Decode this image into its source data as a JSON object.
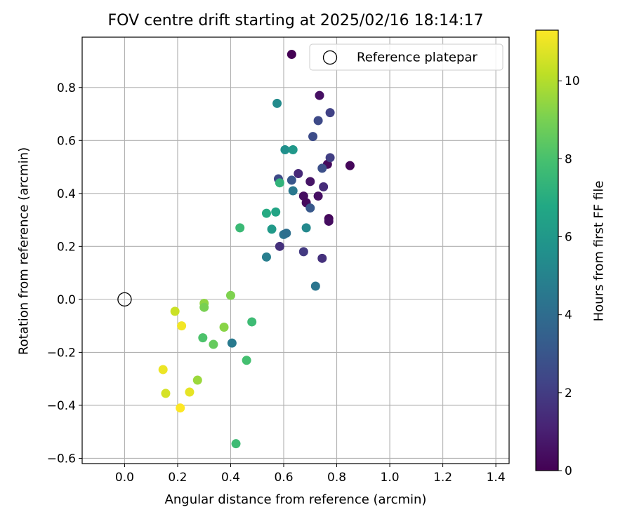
{
  "chart_data": {
    "type": "scatter",
    "title": "FOV centre drift starting at 2025/02/16 18:14:17",
    "xlabel": "Angular distance from reference (arcmin)",
    "ylabel": "Rotation from reference (arcmin)",
    "xlim": [
      -0.16,
      1.45
    ],
    "ylim": [
      -0.62,
      0.99
    ],
    "xticks": [
      0.0,
      0.2,
      0.4,
      0.6,
      0.8,
      1.0,
      1.2,
      1.4
    ],
    "xtick_labels": [
      "0.0",
      "0.2",
      "0.4",
      "0.6",
      "0.8",
      "1.0",
      "1.2",
      "1.4"
    ],
    "yticks": [
      -0.6,
      -0.4,
      -0.2,
      0.0,
      0.2,
      0.4,
      0.6,
      0.8
    ],
    "ytick_labels": [
      "−0.6",
      "−0.4",
      "−0.2",
      "0.0",
      "0.2",
      "0.4",
      "0.6",
      "0.8"
    ],
    "grid": true,
    "legend": {
      "placement": "top-right",
      "entries": [
        "Reference platepar"
      ]
    },
    "reference_point": {
      "label": "Reference platepar",
      "x": 0.0,
      "y": 0.0,
      "marker": "open-circle"
    },
    "colorbar": {
      "label": "Hours from first FF file",
      "colormap": "viridis",
      "range": [
        0,
        11.3
      ],
      "ticks": [
        0,
        2,
        4,
        6,
        8,
        10
      ],
      "tick_labels": [
        "0",
        "2",
        "4",
        "6",
        "8",
        "10"
      ]
    },
    "points": [
      {
        "x": 0.63,
        "y": 0.925,
        "hours": 0.0
      },
      {
        "x": 0.735,
        "y": 0.77,
        "hours": 0.5
      },
      {
        "x": 0.85,
        "y": 0.505,
        "hours": 0.2
      },
      {
        "x": 0.765,
        "y": 0.51,
        "hours": 0.3
      },
      {
        "x": 0.7,
        "y": 0.445,
        "hours": 0.6
      },
      {
        "x": 0.675,
        "y": 0.39,
        "hours": 0.4
      },
      {
        "x": 0.73,
        "y": 0.39,
        "hours": 0.5
      },
      {
        "x": 0.685,
        "y": 0.365,
        "hours": 0.3
      },
      {
        "x": 0.77,
        "y": 0.305,
        "hours": 0.2
      },
      {
        "x": 0.77,
        "y": 0.295,
        "hours": 0.4
      },
      {
        "x": 0.655,
        "y": 0.475,
        "hours": 1.3
      },
      {
        "x": 0.75,
        "y": 0.425,
        "hours": 1.4
      },
      {
        "x": 0.745,
        "y": 0.155,
        "hours": 1.6
      },
      {
        "x": 0.585,
        "y": 0.2,
        "hours": 1.6
      },
      {
        "x": 0.675,
        "y": 0.18,
        "hours": 1.9
      },
      {
        "x": 0.775,
        "y": 0.705,
        "hours": 2.2
      },
      {
        "x": 0.73,
        "y": 0.675,
        "hours": 2.5
      },
      {
        "x": 0.71,
        "y": 0.615,
        "hours": 2.6
      },
      {
        "x": 0.775,
        "y": 0.535,
        "hours": 2.1
      },
      {
        "x": 0.745,
        "y": 0.495,
        "hours": 2.7
      },
      {
        "x": 0.58,
        "y": 0.455,
        "hours": 2.5
      },
      {
        "x": 0.63,
        "y": 0.45,
        "hours": 3.0
      },
      {
        "x": 0.7,
        "y": 0.345,
        "hours": 3.1
      },
      {
        "x": 0.635,
        "y": 0.41,
        "hours": 4.5
      },
      {
        "x": 0.6,
        "y": 0.245,
        "hours": 4.3
      },
      {
        "x": 0.61,
        "y": 0.25,
        "hours": 4.1
      },
      {
        "x": 0.535,
        "y": 0.16,
        "hours": 4.8
      },
      {
        "x": 0.72,
        "y": 0.05,
        "hours": 4.4
      },
      {
        "x": 0.405,
        "y": -0.165,
        "hours": 4.6
      },
      {
        "x": 0.605,
        "y": 0.565,
        "hours": 5.6
      },
      {
        "x": 0.635,
        "y": 0.565,
        "hours": 6.0
      },
      {
        "x": 0.575,
        "y": 0.74,
        "hours": 5.4
      },
      {
        "x": 0.685,
        "y": 0.27,
        "hours": 5.3
      },
      {
        "x": 0.555,
        "y": 0.265,
        "hours": 6.1
      },
      {
        "x": 0.57,
        "y": 0.33,
        "hours": 6.6
      },
      {
        "x": 0.535,
        "y": 0.325,
        "hours": 6.9
      },
      {
        "x": 0.585,
        "y": 0.44,
        "hours": 7.3
      },
      {
        "x": 0.435,
        "y": 0.27,
        "hours": 7.6
      },
      {
        "x": 0.48,
        "y": -0.085,
        "hours": 7.7
      },
      {
        "x": 0.46,
        "y": -0.23,
        "hours": 7.9
      },
      {
        "x": 0.42,
        "y": -0.545,
        "hours": 7.7
      },
      {
        "x": 0.295,
        "y": -0.145,
        "hours": 8.1
      },
      {
        "x": 0.335,
        "y": -0.17,
        "hours": 8.6
      },
      {
        "x": 0.4,
        "y": 0.015,
        "hours": 9.1
      },
      {
        "x": 0.3,
        "y": -0.015,
        "hours": 9.4
      },
      {
        "x": 0.3,
        "y": -0.03,
        "hours": 9.0
      },
      {
        "x": 0.375,
        "y": -0.105,
        "hours": 9.3
      },
      {
        "x": 0.275,
        "y": -0.305,
        "hours": 9.6
      },
      {
        "x": 0.19,
        "y": -0.045,
        "hours": 10.4
      },
      {
        "x": 0.215,
        "y": -0.1,
        "hours": 11.1
      },
      {
        "x": 0.145,
        "y": -0.265,
        "hours": 11.0
      },
      {
        "x": 0.155,
        "y": -0.355,
        "hours": 10.6
      },
      {
        "x": 0.245,
        "y": -0.35,
        "hours": 10.9
      },
      {
        "x": 0.21,
        "y": -0.41,
        "hours": 11.3
      }
    ]
  }
}
